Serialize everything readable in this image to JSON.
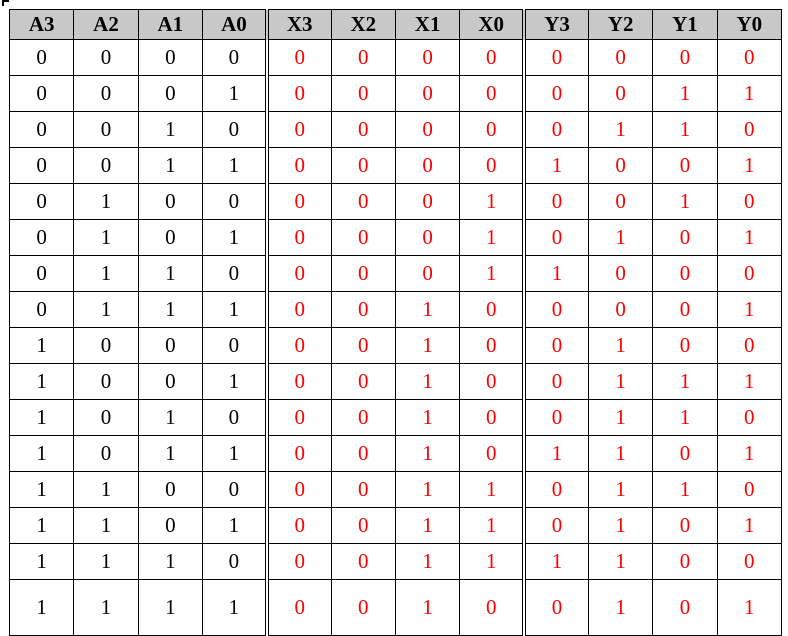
{
  "headers": [
    "A3",
    "A2",
    "A1",
    "A0",
    "X3",
    "X2",
    "X1",
    "X0",
    "Y3",
    "Y2",
    "Y1",
    "Y0"
  ],
  "rows": [
    [
      "0",
      "0",
      "0",
      "0",
      "0",
      "0",
      "0",
      "0",
      "0",
      "0",
      "0",
      "0"
    ],
    [
      "0",
      "0",
      "0",
      "1",
      "0",
      "0",
      "0",
      "0",
      "0",
      "0",
      "1",
      "1"
    ],
    [
      "0",
      "0",
      "1",
      "0",
      "0",
      "0",
      "0",
      "0",
      "0",
      "1",
      "1",
      "0"
    ],
    [
      "0",
      "0",
      "1",
      "1",
      "0",
      "0",
      "0",
      "0",
      "1",
      "0",
      "0",
      "1"
    ],
    [
      "0",
      "1",
      "0",
      "0",
      "0",
      "0",
      "0",
      "1",
      "0",
      "0",
      "1",
      "0"
    ],
    [
      "0",
      "1",
      "0",
      "1",
      "0",
      "0",
      "0",
      "1",
      "0",
      "1",
      "0",
      "1"
    ],
    [
      "0",
      "1",
      "1",
      "0",
      "0",
      "0",
      "0",
      "1",
      "1",
      "0",
      "0",
      "0"
    ],
    [
      "0",
      "1",
      "1",
      "1",
      "0",
      "0",
      "1",
      "0",
      "0",
      "0",
      "0",
      "1"
    ],
    [
      "1",
      "0",
      "0",
      "0",
      "0",
      "0",
      "1",
      "0",
      "0",
      "1",
      "0",
      "0"
    ],
    [
      "1",
      "0",
      "0",
      "1",
      "0",
      "0",
      "1",
      "0",
      "0",
      "1",
      "1",
      "1"
    ],
    [
      "1",
      "0",
      "1",
      "0",
      "0",
      "0",
      "1",
      "0",
      "0",
      "1",
      "1",
      "0"
    ],
    [
      "1",
      "0",
      "1",
      "1",
      "0",
      "0",
      "1",
      "0",
      "1",
      "1",
      "0",
      "1"
    ],
    [
      "1",
      "1",
      "0",
      "0",
      "0",
      "0",
      "1",
      "1",
      "0",
      "1",
      "1",
      "0"
    ],
    [
      "1",
      "1",
      "0",
      "1",
      "0",
      "0",
      "1",
      "1",
      "0",
      "1",
      "0",
      "1"
    ],
    [
      "1",
      "1",
      "1",
      "0",
      "0",
      "0",
      "1",
      "1",
      "1",
      "1",
      "0",
      "0"
    ],
    [
      "1",
      "1",
      "1",
      "1",
      "0",
      "0",
      "1",
      "0",
      "0",
      "1",
      "0",
      "1"
    ]
  ],
  "colors": {
    "header_bg": "#c8c8c8",
    "input_text": "#000000",
    "output_text": "#ff0000"
  }
}
